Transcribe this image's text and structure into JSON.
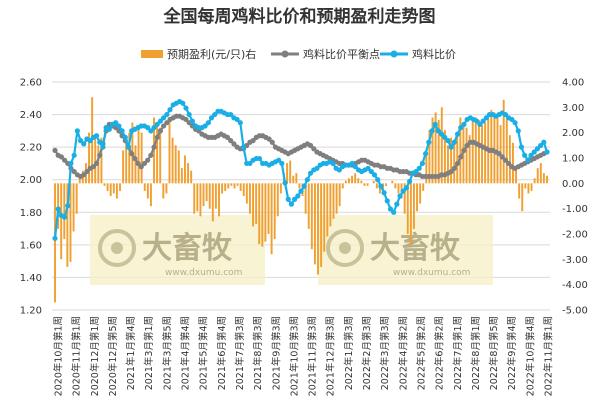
{
  "chart_data": {
    "type": "bar+line",
    "title": "全国每周鸡料比价和预期盈利走势图",
    "colors": {
      "profit": "#F0A030",
      "breakeven": "#7F7F7F",
      "ratio": "#1AAEE6"
    },
    "watermark": {
      "brand": "大畜牧",
      "url": "www.dxumu.com"
    },
    "y_left": {
      "min": 1.2,
      "max": 2.6,
      "step": 0.2,
      "ticks": [
        "1.20",
        "1.40",
        "1.60",
        "1.80",
        "2.00",
        "2.20",
        "2.40",
        "2.60"
      ]
    },
    "y_right": {
      "min": -5.0,
      "max": 4.0,
      "step": 1.0,
      "ticks": [
        "-5.00",
        "-4.00",
        "-3.00",
        "-2.00",
        "-1.00",
        "0.00",
        "1.00",
        "2.00",
        "3.00",
        "4.00"
      ]
    },
    "x_labels": [
      "2020年10月第1周",
      "2020年11月第1周",
      "2020年12月第1周",
      "2020年12月第5周",
      "2021年1月第4周",
      "2021年3月第1周",
      "2021年3月第5周",
      "2021年4月第4周",
      "2021年5月第4周",
      "2021年6月第4周",
      "2021年7月第3周",
      "2021年8月第3周",
      "2021年9月第3周",
      "2021年10月第3周",
      "2021年11月第3周",
      "2021年12月第3周",
      "2022年1月第3周",
      "2022年2月第3周",
      "2022年3月第3周",
      "2022年4月第2周",
      "2022年5月第2周",
      "2022年6月第2周",
      "2022年7月第1周",
      "2022年8月第1周",
      "2022年8月第5周",
      "2022年9月第4周",
      "2022年10月第4周",
      "2022年11月第1周"
    ],
    "legend": [
      "预期盈利(元/只)右",
      "鸡料比价平衡点",
      "鸡料比价"
    ],
    "series": [
      {
        "name": "预期盈利(元/只)右",
        "type": "bar",
        "axis": "right",
        "values": [
          -4.7,
          -1.8,
          -3.0,
          -2.2,
          -3.3,
          -3.1,
          -1.9,
          -1.2,
          0.3,
          0.5,
          0.8,
          2.0,
          3.4,
          1.8,
          1.5,
          1.8,
          -0.1,
          -0.3,
          -0.5,
          -0.4,
          -0.6,
          -0.3,
          1.3,
          1.8,
          2.0,
          2.4,
          1.5,
          2.2,
          2.0,
          -0.3,
          -0.6,
          -0.9,
          2.6,
          2.4,
          2.2,
          -0.6,
          -0.4,
          2.6,
          1.8,
          1.5,
          1.3,
          0.6,
          1.1,
          0.8,
          0.5,
          -1.2,
          -1.1,
          -1.3,
          -0.9,
          -0.7,
          -1.0,
          -1.5,
          -1.0,
          -1.3,
          -0.4,
          -0.3,
          -0.2,
          -0.1,
          -0.2,
          -0.1,
          -0.3,
          -0.5,
          -0.8,
          -1.2,
          -1.7,
          -1.6,
          -2.4,
          -2.5,
          -2.3,
          -2.0,
          -2.8,
          -2.2,
          -1.3,
          -0.4,
          0.4,
          0.8,
          0.9,
          0.3,
          0.4,
          -0.2,
          -0.5,
          -1.2,
          -1.8,
          -2.6,
          -3.2,
          -3.6,
          -3.3,
          -2.7,
          -2.1,
          -1.7,
          -1.4,
          -1.2,
          -0.9,
          -0.2,
          0.1,
          0.2,
          0.3,
          0.4,
          0.2,
          0.1,
          -0.1,
          -0.1,
          0.0,
          0.1,
          -0.2,
          -0.4,
          -0.3,
          -0.1,
          0.0,
          0.1,
          -0.2,
          -0.4,
          -0.6,
          -1.2,
          -2.0,
          -2.4,
          -1.8,
          -1.1,
          -0.8,
          -0.3,
          1.2,
          2.1,
          2.6,
          2.8,
          2.5,
          3.0,
          2.1,
          1.5,
          1.8,
          1.6,
          2.0,
          2.6,
          2.4,
          2.2,
          1.9,
          2.5,
          2.6,
          2.5,
          2.3,
          2.4,
          2.7,
          2.9,
          2.8,
          2.6,
          2.3,
          3.3,
          2.6,
          1.9,
          1.6,
          0.6,
          -0.6,
          -1.1,
          -0.2,
          -0.4,
          -0.3,
          0.2,
          0.6,
          0.8,
          0.4,
          0.3
        ]
      },
      {
        "name": "鸡料比价平衡点",
        "type": "line",
        "axis": "left",
        "values": [
          2.18,
          2.15,
          2.14,
          2.12,
          2.1,
          2.07,
          2.05,
          2.03,
          2.02,
          2.03,
          2.05,
          2.07,
          2.08,
          2.1,
          2.15,
          2.22,
          2.3,
          2.34,
          2.33,
          2.32,
          2.3,
          2.27,
          2.24,
          2.2,
          2.16,
          2.13,
          2.1,
          2.08,
          2.1,
          2.12,
          2.15,
          2.2,
          2.26,
          2.3,
          2.33,
          2.35,
          2.37,
          2.38,
          2.39,
          2.39,
          2.38,
          2.37,
          2.35,
          2.33,
          2.31,
          2.3,
          2.28,
          2.27,
          2.26,
          2.26,
          2.26,
          2.27,
          2.28,
          2.27,
          2.26,
          2.24,
          2.22,
          2.2,
          2.19,
          2.19,
          2.21,
          2.23,
          2.24,
          2.26,
          2.27,
          2.27,
          2.26,
          2.25,
          2.23,
          2.2,
          2.19,
          2.18,
          2.17,
          2.16,
          2.17,
          2.18,
          2.19,
          2.2,
          2.21,
          2.22,
          2.21,
          2.19,
          2.17,
          2.16,
          2.15,
          2.14,
          2.13,
          2.12,
          2.11,
          2.1,
          2.1,
          2.09,
          2.09,
          2.09,
          2.1,
          2.11,
          2.12,
          2.12,
          2.11,
          2.1,
          2.09,
          2.09,
          2.08,
          2.08,
          2.07,
          2.07,
          2.06,
          2.06,
          2.05,
          2.05,
          2.05,
          2.04,
          2.04,
          2.03,
          2.03,
          2.02,
          2.02,
          2.02,
          2.02,
          2.02,
          2.02,
          2.03,
          2.03,
          2.04,
          2.05,
          2.07,
          2.1,
          2.14,
          2.18,
          2.21,
          2.23,
          2.23,
          2.22,
          2.21,
          2.2,
          2.19,
          2.18,
          2.18,
          2.17,
          2.16,
          2.14,
          2.12,
          2.1,
          2.08,
          2.07,
          2.08,
          2.09,
          2.1,
          2.11,
          2.12,
          2.13,
          2.14,
          2.15,
          2.16,
          2.17
        ]
      },
      {
        "name": "鸡料比价",
        "type": "line",
        "axis": "left",
        "values": [
          1.64,
          1.82,
          1.78,
          1.77,
          1.84,
          2.1,
          2.15,
          2.3,
          2.24,
          2.22,
          2.25,
          2.24,
          2.26,
          2.27,
          2.23,
          2.2,
          2.32,
          2.31,
          2.34,
          2.35,
          2.33,
          2.3,
          2.26,
          2.2,
          2.3,
          2.31,
          2.32,
          2.33,
          2.33,
          2.32,
          2.3,
          2.32,
          2.34,
          2.36,
          2.38,
          2.4,
          2.43,
          2.46,
          2.47,
          2.48,
          2.47,
          2.44,
          2.4,
          2.36,
          2.33,
          2.32,
          2.32,
          2.33,
          2.35,
          2.38,
          2.4,
          2.42,
          2.42,
          2.41,
          2.4,
          2.4,
          2.38,
          2.37,
          2.35,
          2.2,
          2.1,
          2.1,
          2.12,
          2.13,
          2.13,
          2.1,
          2.1,
          2.09,
          2.1,
          2.11,
          2.12,
          2.1,
          1.98,
          1.88,
          1.85,
          1.88,
          1.9,
          1.93,
          1.96,
          2.0,
          2.04,
          2.06,
          2.07,
          2.09,
          2.1,
          2.1,
          2.11,
          2.1,
          2.07,
          2.06,
          2.08,
          2.09,
          2.09,
          2.1,
          2.08,
          2.06,
          2.05,
          2.06,
          2.07,
          2.05,
          2.03,
          2.0,
          1.96,
          1.92,
          1.87,
          1.82,
          1.8,
          1.85,
          1.9,
          1.93,
          1.95,
          1.99,
          2.04,
          2.05,
          2.07,
          2.1,
          2.16,
          2.23,
          2.3,
          2.34,
          2.3,
          2.28,
          2.26,
          2.24,
          2.2,
          2.23,
          2.28,
          2.32,
          2.34,
          2.37,
          2.38,
          2.37,
          2.36,
          2.34,
          2.36,
          2.38,
          2.4,
          2.4,
          2.39,
          2.4,
          2.41,
          2.4,
          2.38,
          2.37,
          2.35,
          2.3,
          2.2,
          2.15,
          2.12,
          2.15,
          2.17,
          2.19,
          2.21,
          2.23,
          2.17
        ]
      }
    ]
  }
}
